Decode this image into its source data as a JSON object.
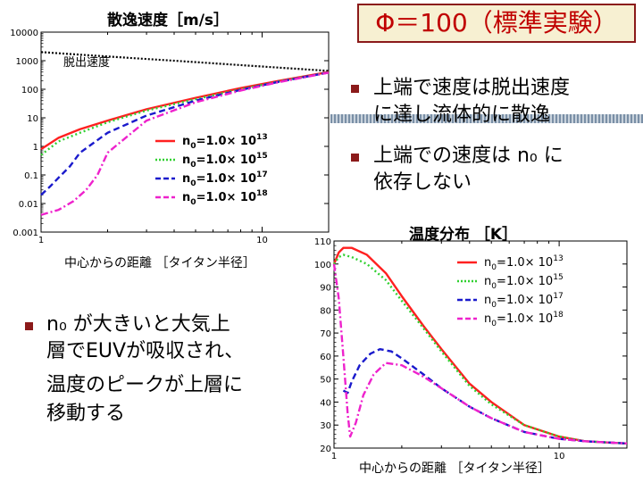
{
  "slide_title": "Φ＝100（標準実験）",
  "bullets": [
    {
      "lines": [
        "上端で速度は脱出速度",
        "に達し流体的に散逸"
      ]
    },
    {
      "lines": [
        "上端での速度は n₀ に",
        "依存しない"
      ]
    },
    {
      "lines": [
        "n₀ が大きいと大気上",
        "層でEUVが吸収され、",
        "温度のピークが上層に",
        "移動する"
      ]
    }
  ],
  "colors": {
    "accent_dark_red": "#8b1a1a",
    "title_red": "#c00000",
    "title_bg": "#f7f0d2"
  },
  "chart_data": [
    {
      "type": "line",
      "title": "散逸速度［m/s］",
      "xlabel": "中心からの距離 ［タイタン半径］",
      "ylabel": "",
      "x_scale": "log",
      "y_scale": "log",
      "xlim": [
        1,
        20
      ],
      "ylim": [
        0.001,
        10000
      ],
      "x_ticks": [
        {
          "v": 1,
          "label": "1"
        },
        {
          "v": 10,
          "label": "10"
        }
      ],
      "y_ticks": [
        {
          "v": 0.001,
          "label": "0.001"
        },
        {
          "v": 0.01,
          "label": "0.01"
        },
        {
          "v": 0.1,
          "label": "0.1"
        },
        {
          "v": 1,
          "label": "1"
        },
        {
          "v": 10,
          "label": "10"
        },
        {
          "v": 100,
          "label": "100"
        },
        {
          "v": 1000,
          "label": "1000"
        },
        {
          "v": 10000,
          "label": "10000"
        }
      ],
      "annotation": "脱出速度",
      "escape_velocity": {
        "color": "#000000",
        "style": "dotted",
        "x": [
          1,
          2,
          4,
          8,
          20
        ],
        "y": [
          2000,
          1400,
          1000,
          700,
          440
        ]
      },
      "legend_position": "right",
      "series": [
        {
          "name": "n0=1.0×1013",
          "base": "n",
          "sub": "0",
          "mid": "=1.0× 10",
          "sup": "13",
          "color": "#ff2020",
          "style": "solid",
          "x": [
            1,
            1.2,
            1.5,
            2,
            3,
            5,
            8,
            12,
            20
          ],
          "y": [
            0.8,
            2,
            4,
            8,
            20,
            50,
            110,
            200,
            400
          ]
        },
        {
          "name": "n0=1.0×1015",
          "base": "n",
          "sub": "0",
          "mid": "=1.0× 10",
          "sup": "15",
          "color": "#30d030",
          "style": "dotted",
          "x": [
            1,
            1.2,
            1.5,
            2,
            3,
            5,
            8,
            12,
            20
          ],
          "y": [
            0.5,
            1.5,
            3,
            7,
            18,
            45,
            100,
            190,
            390
          ]
        },
        {
          "name": "n0=1.0×1017",
          "base": "n",
          "sub": "0",
          "mid": "=1.0× 10",
          "sup": "17",
          "color": "#1a1acc",
          "style": "dashed",
          "x": [
            1,
            1.1,
            1.2,
            1.35,
            1.5,
            2,
            3,
            5,
            8,
            12,
            20
          ],
          "y": [
            0.02,
            0.04,
            0.08,
            0.2,
            0.6,
            3,
            12,
            40,
            95,
            185,
            385
          ]
        },
        {
          "name": "n0=1.0×1018",
          "base": "n",
          "sub": "0",
          "mid": "=1.0× 10",
          "sup": "18",
          "color": "#ee22cc",
          "style": "dashdot",
          "x": [
            1,
            1.2,
            1.4,
            1.6,
            1.8,
            2,
            3,
            5,
            8,
            12,
            20
          ],
          "y": [
            0.004,
            0.006,
            0.012,
            0.03,
            0.1,
            0.6,
            8,
            35,
            90,
            180,
            380
          ]
        }
      ]
    },
    {
      "type": "line",
      "title": "温度分布 ［K］",
      "xlabel": "中心からの距離 ［タイタン半径］",
      "ylabel": "",
      "x_scale": "log",
      "y_scale": "linear",
      "xlim": [
        1,
        20
      ],
      "ylim": [
        20,
        110
      ],
      "x_ticks": [
        {
          "v": 1,
          "label": "1"
        },
        {
          "v": 10,
          "label": "10"
        }
      ],
      "y_ticks": [
        {
          "v": 20,
          "label": "20"
        },
        {
          "v": 30,
          "label": "30"
        },
        {
          "v": 40,
          "label": "40"
        },
        {
          "v": 50,
          "label": "50"
        },
        {
          "v": 60,
          "label": "60"
        },
        {
          "v": 70,
          "label": "70"
        },
        {
          "v": 80,
          "label": "80"
        },
        {
          "v": 90,
          "label": "90"
        },
        {
          "v": 100,
          "label": "100"
        },
        {
          "v": 110,
          "label": "110"
        }
      ],
      "legend_position": "top-right",
      "series": [
        {
          "name": "n0=1.0×1013",
          "base": "n",
          "sub": "0",
          "mid": "=1.0× 10",
          "sup": "13",
          "color": "#ff2020",
          "style": "solid",
          "x": [
            1,
            1.05,
            1.1,
            1.2,
            1.4,
            1.7,
            2,
            2.5,
            3,
            4,
            5,
            7,
            10,
            13,
            16,
            20
          ],
          "y": [
            100,
            105,
            107,
            107,
            104,
            96,
            86,
            73,
            63,
            48,
            40,
            30,
            25,
            23,
            22.5,
            22
          ]
        },
        {
          "name": "n0=1.0×1015",
          "base": "n",
          "sub": "0",
          "mid": "=1.0× 10",
          "sup": "15",
          "color": "#30d030",
          "style": "dotted",
          "x": [
            1,
            1.05,
            1.1,
            1.2,
            1.4,
            1.7,
            2,
            2.5,
            3,
            4,
            5,
            7,
            10,
            13,
            16,
            20
          ],
          "y": [
            100,
            103,
            104,
            103,
            100,
            93,
            84,
            72,
            62,
            47,
            39,
            30,
            25,
            23,
            22.5,
            22
          ]
        },
        {
          "name": "n0=1.0×1017",
          "base": "n",
          "sub": "0",
          "mid": "=1.0× 10",
          "sup": "17",
          "color": "#1a1acc",
          "style": "dashed",
          "x": [
            1.1,
            1.15,
            1.2,
            1.3,
            1.45,
            1.6,
            1.8,
            2,
            2.5,
            3,
            4,
            5,
            7,
            10,
            13,
            16,
            20
          ],
          "y": [
            45,
            44,
            49,
            56,
            61,
            63,
            62,
            59,
            52,
            46,
            38,
            33,
            27,
            24,
            23,
            22.5,
            22
          ]
        },
        {
          "name": "n0=1.0×1018",
          "base": "n",
          "sub": "0",
          "mid": "=1.0× 10",
          "sup": "18",
          "color": "#ee22cc",
          "style": "dashdot",
          "x": [
            1,
            1.05,
            1.1,
            1.15,
            1.18,
            1.25,
            1.35,
            1.5,
            1.7,
            2,
            2.5,
            3,
            4,
            5,
            7,
            10,
            13,
            16,
            20
          ],
          "y": [
            100,
            85,
            60,
            35,
            25,
            31,
            43,
            52,
            57,
            56,
            51,
            46,
            38,
            33,
            27,
            24,
            23,
            22.5,
            22
          ]
        }
      ]
    }
  ]
}
